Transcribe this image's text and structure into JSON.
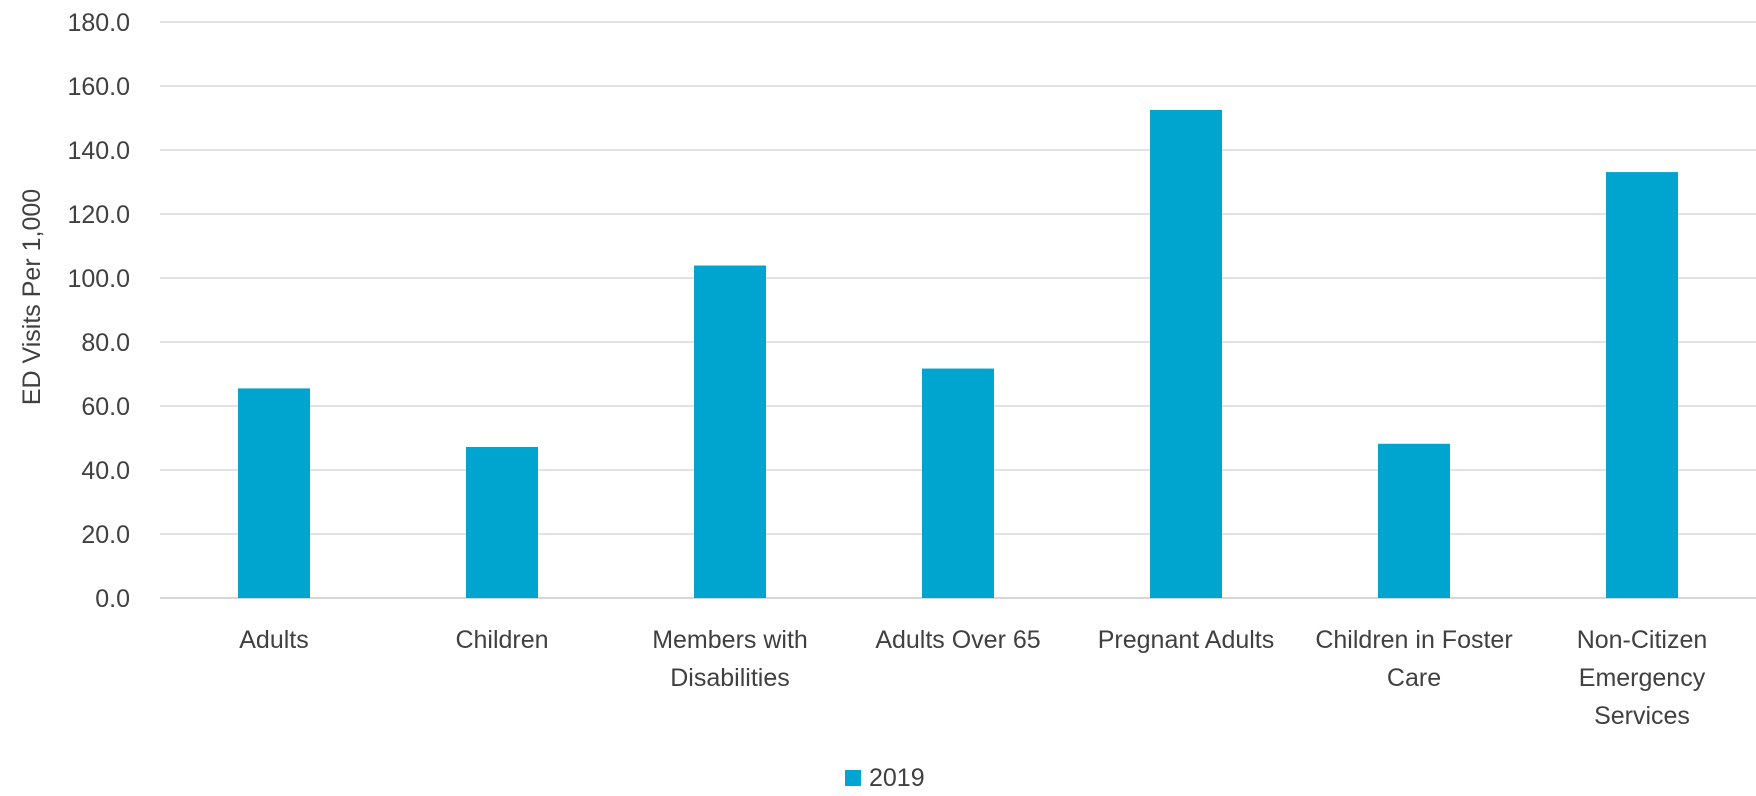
{
  "chart_data": {
    "type": "bar",
    "title": "",
    "xlabel": "",
    "ylabel": "ED Visits Per 1,000",
    "ylim": [
      0,
      180
    ],
    "yticks": [
      "0.0",
      "20.0",
      "40.0",
      "60.0",
      "80.0",
      "100.0",
      "120.0",
      "140.0",
      "160.0",
      "180.0"
    ],
    "grid": true,
    "legend": "bottom-center",
    "categories": [
      [
        "Adults"
      ],
      [
        "Children"
      ],
      [
        "Members with",
        "Disabilities"
      ],
      [
        "Adults Over 65"
      ],
      [
        "Pregnant Adults"
      ],
      [
        "Children in Foster",
        "Care"
      ],
      [
        "Non-Citizen",
        "Emergency",
        "Services"
      ]
    ],
    "series": [
      {
        "name": "2019",
        "color": "#00A5CF",
        "values": [
          65.5,
          47.2,
          103.9,
          71.7,
          152.5,
          48.2,
          133.1
        ]
      }
    ]
  }
}
